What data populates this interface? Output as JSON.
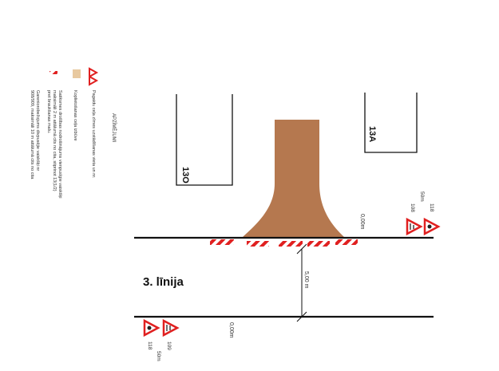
{
  "legend": {
    "title": "APZĪMĒJUMI",
    "items": [
      {
        "icon": "warning-sign-pair-icon",
        "text": "Pagaidu ceļa zīmes uzstādīšanas vieta un nr."
      },
      {
        "icon": "asphalt-swatch-icon",
        "color": "#e8c9a0",
        "text": "Koplietošanas ceļa izbūve"
      },
      {
        "icon": "barrier-stripe-icon",
        "text_lines": [
          "Satiksmes drošības nodrošinājums vienpusīgie vaiskšķi",
          "maksimāli 2 m attālumā cits no cita, stiprinot 13(1/2)",
          "pret braukšanas malu."
        ]
      },
      {
        "icon": "barrier-stripe-icon",
        "text_lines": [
          "Gareniorobežojums divpusējie vaiskšķi nr",
          "908/909, maksimāli 10 m attālumā cits no cita"
        ]
      }
    ]
  },
  "buildings": [
    {
      "label": "13O"
    },
    {
      "label": "13A"
    }
  ],
  "road": {
    "name": "3. līnija",
    "width_label": "5,00 m",
    "top_offset_label": "0,00m",
    "bottom_offset_label": "0,00m"
  },
  "signs_top": {
    "numbers": [
      "108",
      "118"
    ],
    "distance": "50m"
  },
  "signs_bottom": {
    "numbers": [
      "118",
      "109"
    ],
    "distance": "50m"
  },
  "colors": {
    "driveway": "#b5784f",
    "barrier_red": "#e02020",
    "road_line": "#111111",
    "legend_swatch": "#e8c9a0"
  }
}
